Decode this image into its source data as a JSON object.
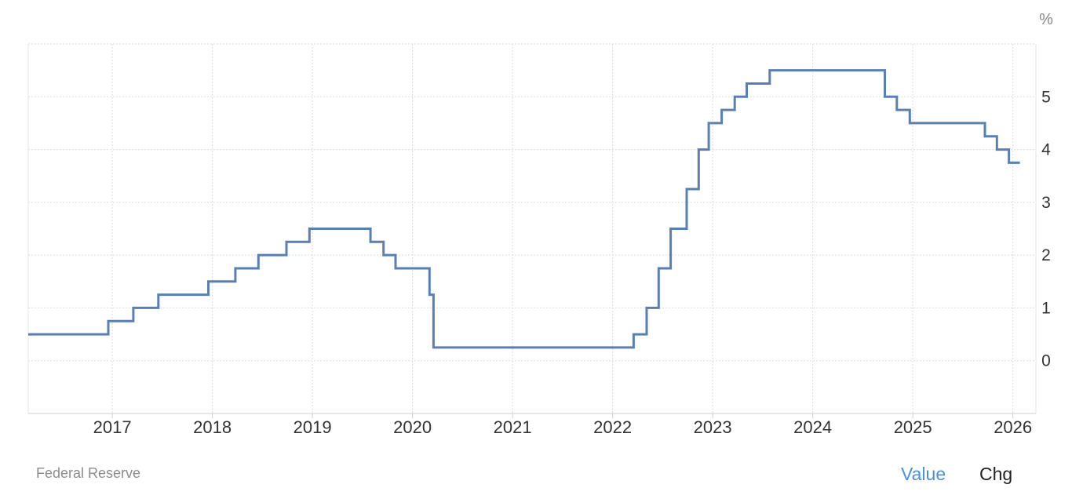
{
  "source": "Federal Reserve",
  "tabs": {
    "value_label": "Value",
    "chg_label": "Chg"
  },
  "colors": {
    "line": "#5a7fb5",
    "grid": "#dcdcdc",
    "axis_text": "#333333",
    "unit_text": "#888888"
  },
  "chart_data": {
    "type": "line",
    "step": true,
    "title": "",
    "xlabel": "",
    "ylabel": "",
    "y_unit_label": "%",
    "xlim": [
      2016.16,
      2026.23
    ],
    "ylim": [
      -1,
      6
    ],
    "x_ticks": [
      2017,
      2018,
      2019,
      2020,
      2021,
      2022,
      2023,
      2024,
      2025,
      2026
    ],
    "x_tick_labels": [
      "2017",
      "2018",
      "2019",
      "2020",
      "2021",
      "2022",
      "2023",
      "2024",
      "2025",
      "2026"
    ],
    "y_ticks": [
      0,
      1,
      2,
      3,
      4,
      5
    ],
    "y_tick_labels": [
      "0",
      "1",
      "2",
      "3",
      "4",
      "5"
    ],
    "grid": true,
    "series": [
      {
        "values": [
          {
            "x": 2016.16,
            "y": 0.5
          },
          {
            "x": 2016.96,
            "y": 0.75
          },
          {
            "x": 2017.21,
            "y": 1.0
          },
          {
            "x": 2017.46,
            "y": 1.25
          },
          {
            "x": 2017.96,
            "y": 1.5
          },
          {
            "x": 2018.23,
            "y": 1.75
          },
          {
            "x": 2018.46,
            "y": 2.0
          },
          {
            "x": 2018.74,
            "y": 2.25
          },
          {
            "x": 2018.97,
            "y": 2.5
          },
          {
            "x": 2019.58,
            "y": 2.25
          },
          {
            "x": 2019.71,
            "y": 2.0
          },
          {
            "x": 2019.83,
            "y": 1.75
          },
          {
            "x": 2020.17,
            "y": 1.25
          },
          {
            "x": 2020.21,
            "y": 0.25
          },
          {
            "x": 2022.21,
            "y": 0.5
          },
          {
            "x": 2022.34,
            "y": 1.0
          },
          {
            "x": 2022.46,
            "y": 1.75
          },
          {
            "x": 2022.58,
            "y": 2.5
          },
          {
            "x": 2022.74,
            "y": 3.25
          },
          {
            "x": 2022.86,
            "y": 4.0
          },
          {
            "x": 2022.96,
            "y": 4.5
          },
          {
            "x": 2023.09,
            "y": 4.75
          },
          {
            "x": 2023.22,
            "y": 5.0
          },
          {
            "x": 2023.34,
            "y": 5.25
          },
          {
            "x": 2023.57,
            "y": 5.5
          },
          {
            "x": 2024.72,
            "y": 5.0
          },
          {
            "x": 2024.84,
            "y": 4.75
          },
          {
            "x": 2024.97,
            "y": 4.5
          },
          {
            "x": 2025.72,
            "y": 4.25
          },
          {
            "x": 2025.84,
            "y": 4.0
          },
          {
            "x": 2025.96,
            "y": 3.75
          },
          {
            "x": 2026.07,
            "y": 3.75
          }
        ]
      }
    ]
  }
}
